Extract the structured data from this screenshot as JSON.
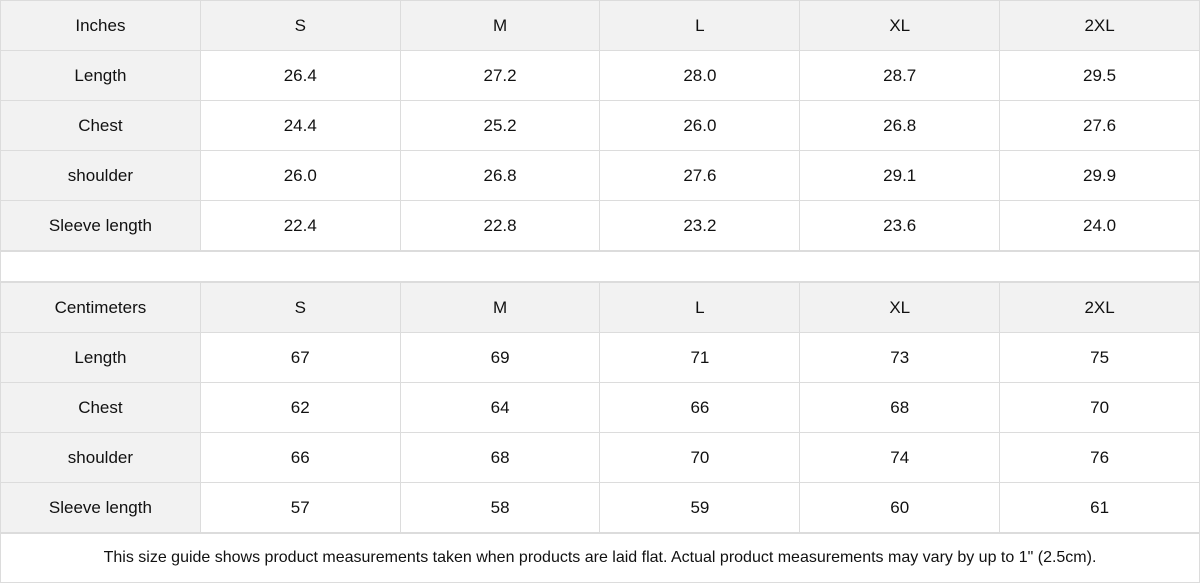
{
  "inches": {
    "header": [
      "Inches",
      "S",
      "M",
      "L",
      "XL",
      "2XL"
    ],
    "rows": [
      [
        "Length",
        "26.4",
        "27.2",
        "28.0",
        "28.7",
        "29.5"
      ],
      [
        "Chest",
        "24.4",
        "25.2",
        "26.0",
        "26.8",
        "27.6"
      ],
      [
        "shoulder",
        "26.0",
        "26.8",
        "27.6",
        "29.1",
        "29.9"
      ],
      [
        "Sleeve length",
        "22.4",
        "22.8",
        "23.2",
        "23.6",
        "24.0"
      ]
    ]
  },
  "centimeters": {
    "header": [
      "Centimeters",
      "S",
      "M",
      "L",
      "XL",
      "2XL"
    ],
    "rows": [
      [
        "Length",
        "67",
        "69",
        "71",
        "73",
        "75"
      ],
      [
        "Chest",
        "62",
        "64",
        "66",
        "68",
        "70"
      ],
      [
        "shoulder",
        "66",
        "68",
        "70",
        "74",
        "76"
      ],
      [
        "Sleeve length",
        "57",
        "58",
        "59",
        "60",
        "61"
      ]
    ]
  },
  "footnote": "This size guide shows product measurements taken when products are laid flat.  Actual product measurements may vary by up to 1\" (2.5cm).",
  "colors": {
    "header_bg": "#f2f2f2",
    "border": "#dcdcdc"
  }
}
